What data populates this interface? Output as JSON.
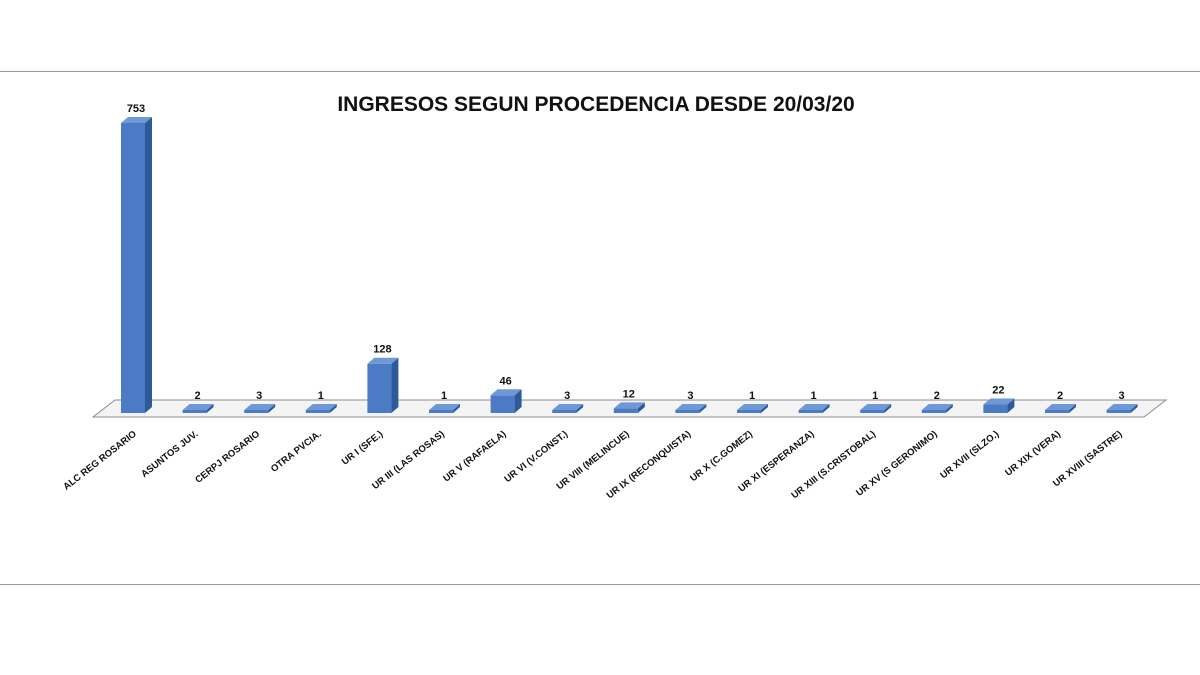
{
  "chart_data": {
    "type": "bar",
    "title": "INGRESOS SEGUN PROCEDENCIA DESDE 20/03/20",
    "xlabel": "",
    "ylabel": "",
    "categories": [
      "ALC REG ROSARIO",
      "ASUNTOS JUV.",
      "CERPJ ROSARIO",
      "OTRA PVCIA.",
      "UR I (SFE.)",
      "UR III (LAS ROSAS)",
      "UR V (RAFAELA)",
      "UR VI (V.CONST.)",
      "UR VIII (MELINCUE)",
      "UR IX (RECONQUISTA)",
      "UR X (C.GOMEZ)",
      "UR XI (ESPERANZA)",
      "UR XIII (S.CRISTOBAL)",
      "UR XV (S GERONIMO)",
      "UR XVII (SLZO.)",
      "UR XIX (VERA)",
      "UR XVIII (SASTRE)"
    ],
    "values": [
      753,
      2,
      3,
      1,
      128,
      1,
      46,
      3,
      12,
      3,
      1,
      1,
      1,
      2,
      22,
      2,
      3
    ],
    "ylim": [
      0,
      753
    ],
    "grid": false,
    "legend": "none",
    "bar_color": "#4a7bc4",
    "bar_side_color": "#2d5a9a",
    "bar_top_color": "#6f98d6",
    "floor_color": "#f4f4f4",
    "floor_edge_color": "#8c8c8c"
  }
}
